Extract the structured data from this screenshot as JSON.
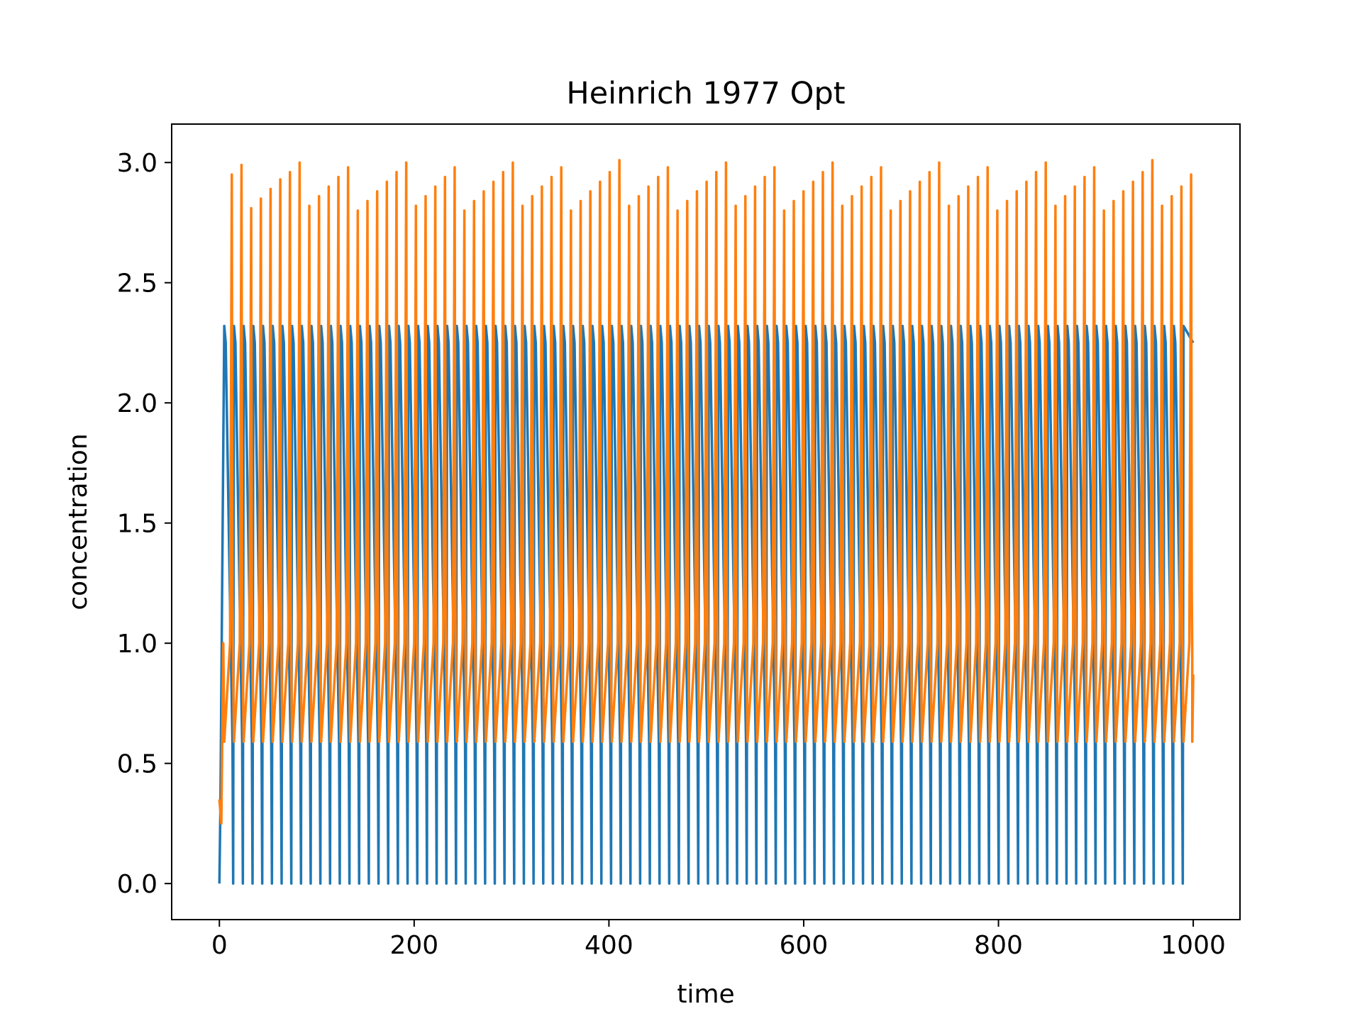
{
  "chart_data": {
    "type": "line",
    "title": "Heinrich 1977 Opt",
    "xlabel": "time",
    "ylabel": "concentration",
    "xlim": [
      -49,
      1048
    ],
    "ylim": [
      -0.15,
      3.16
    ],
    "xticks": [
      0,
      200,
      400,
      600,
      800,
      1000
    ],
    "xtick_labels": [
      "0",
      "200",
      "400",
      "600",
      "800",
      "1000"
    ],
    "yticks": [
      0.0,
      0.5,
      1.0,
      1.5,
      2.0,
      2.5,
      3.0
    ],
    "ytick_labels": [
      "0.0",
      "0.5",
      "1.0",
      "1.5",
      "2.0",
      "2.5",
      "3.0"
    ],
    "grid": false,
    "legend": "none",
    "series": [
      {
        "color": "#1f77b4",
        "x": [
          0,
          1,
          5
        ],
        "values": [
          0.0,
          0.3,
          2.32
        ],
        "pattern": {
          "kind": "oscillation",
          "start": 5,
          "end": 1000,
          "period": 9.95,
          "min": 0.0,
          "max": 2.32,
          "final_value": 2.25
        }
      },
      {
        "color": "#ff7f0e",
        "x": [
          0,
          2,
          4
        ],
        "values": [
          0.35,
          0.25,
          1.0
        ],
        "pattern": {
          "kind": "oscillation",
          "start": 4,
          "end": 1000,
          "period": 9.95,
          "min": 0.59,
          "peaks": [
            2.95,
            2.99,
            2.81,
            2.85,
            2.89,
            2.93,
            2.96,
            3.0,
            2.82,
            2.86,
            2.9,
            2.94,
            2.98,
            2.8,
            2.84,
            2.88,
            2.92,
            2.96,
            3.0,
            2.82,
            2.86,
            2.9,
            2.94,
            2.98,
            2.8,
            2.84,
            2.88,
            2.92,
            2.96,
            3.0,
            2.82,
            2.86,
            2.9,
            2.94,
            2.98,
            2.8,
            2.84,
            2.88,
            2.92,
            2.96,
            3.01,
            2.82,
            2.86,
            2.9,
            2.94,
            2.98,
            2.8,
            2.84,
            2.88,
            2.92,
            2.96,
            3.0,
            2.82,
            2.86,
            2.9,
            2.94,
            2.98,
            2.8,
            2.84,
            2.88,
            2.92,
            2.96,
            3.0,
            2.82,
            2.86,
            2.9,
            2.94,
            2.98,
            2.8,
            2.84,
            2.88,
            2.92,
            2.96,
            3.0,
            2.82,
            2.86,
            2.9,
            2.94,
            2.98,
            2.8,
            2.84,
            2.88,
            2.92,
            2.96,
            3.0,
            2.82,
            2.86,
            2.9,
            2.94,
            2.98,
            2.8,
            2.84,
            2.88,
            2.92,
            2.96,
            3.01,
            2.82,
            2.86,
            2.9,
            2.95
          ],
          "final_value": 0.87
        }
      }
    ]
  }
}
